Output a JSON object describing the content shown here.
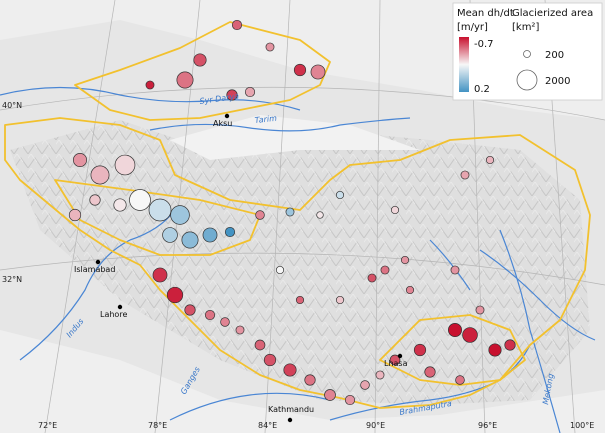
{
  "legend": {
    "color_title": "Mean dh/dt",
    "color_unit": "[m/yr]",
    "color_max": "-0.7",
    "color_min": "0.2",
    "size_title": "Glacierized area",
    "size_unit": "[km²]",
    "size_small": "200",
    "size_large": "2000"
  },
  "colors": {
    "boundary": "#f2c12e",
    "river": "#4a86d4",
    "strong_loss": "#c8102e",
    "neutral": "#f7f7f7",
    "gain": "#4393c3",
    "terrain": "#d9d9d9"
  },
  "cities": [
    {
      "name": "Aksu",
      "key": "aksu"
    },
    {
      "name": "Islamabad",
      "key": "islamabad"
    },
    {
      "name": "Lahore",
      "key": "lahore"
    },
    {
      "name": "Kathmandu",
      "key": "kathmandu"
    },
    {
      "name": "Lhasa",
      "key": "lhasa"
    }
  ],
  "rivers": [
    {
      "name": "Syr Darya",
      "key": "syrdarya"
    },
    {
      "name": "Tarim",
      "key": "tarim"
    },
    {
      "name": "Indus",
      "key": "indus"
    },
    {
      "name": "Ganges",
      "key": "ganges"
    },
    {
      "name": "Brahmaputra",
      "key": "brahmaputra"
    },
    {
      "name": "Mekong",
      "key": "mekong"
    }
  ],
  "lat_labels": [
    "40°N",
    "32°N"
  ],
  "lon_labels": [
    "72°E",
    "78°E",
    "84°E",
    "90°E",
    "96°E",
    "100°E"
  ],
  "regions": [
    {
      "dhdt": -0.45,
      "area": 400
    },
    {
      "dhdt": -0.3,
      "area": 300
    },
    {
      "dhdt": -0.6,
      "area": 600
    },
    {
      "dhdt": -0.35,
      "area": 900
    },
    {
      "dhdt": -0.5,
      "area": 700
    },
    {
      "dhdt": -0.4,
      "area": 1200
    },
    {
      "dhdt": -0.55,
      "area": 500
    },
    {
      "dhdt": -0.25,
      "area": 400
    },
    {
      "dhdt": -0.65,
      "area": 300
    },
    {
      "dhdt": -0.3,
      "area": 800
    },
    {
      "dhdt": -0.2,
      "area": 1500
    },
    {
      "dhdt": -0.1,
      "area": 1800
    },
    {
      "dhdt": 0.0,
      "area": 2000
    },
    {
      "dhdt": 0.05,
      "area": 2200
    },
    {
      "dhdt": 0.1,
      "area": 1600
    },
    {
      "dhdt": 0.12,
      "area": 1200
    },
    {
      "dhdt": 0.15,
      "area": 900
    },
    {
      "dhdt": 0.2,
      "area": 400
    },
    {
      "dhdt": 0.08,
      "area": 1000
    },
    {
      "dhdt": -0.05,
      "area": 700
    },
    {
      "dhdt": -0.15,
      "area": 500
    },
    {
      "dhdt": -0.2,
      "area": 600
    },
    {
      "dhdt": -0.6,
      "area": 900
    },
    {
      "dhdt": -0.65,
      "area": 1100
    },
    {
      "dhdt": -0.5,
      "area": 500
    },
    {
      "dhdt": -0.4,
      "area": 400
    },
    {
      "dhdt": -0.35,
      "area": 350
    },
    {
      "dhdt": -0.3,
      "area": 300
    },
    {
      "dhdt": -0.45,
      "area": 450
    },
    {
      "dhdt": -0.5,
      "area": 600
    },
    {
      "dhdt": -0.55,
      "area": 700
    },
    {
      "dhdt": -0.4,
      "area": 500
    },
    {
      "dhdt": -0.35,
      "area": 550
    },
    {
      "dhdt": -0.3,
      "area": 400
    },
    {
      "dhdt": -0.25,
      "area": 350
    },
    {
      "dhdt": -0.2,
      "area": 300
    },
    {
      "dhdt": -0.5,
      "area": 450
    },
    {
      "dhdt": -0.6,
      "area": 600
    },
    {
      "dhdt": -0.45,
      "area": 500
    },
    {
      "dhdt": -0.7,
      "area": 800
    },
    {
      "dhdt": -0.65,
      "area": 1000
    },
    {
      "dhdt": -0.7,
      "area": 700
    },
    {
      "dhdt": -0.6,
      "area": 500
    },
    {
      "dhdt": -0.4,
      "area": 350
    },
    {
      "dhdt": -0.3,
      "area": 300
    },
    {
      "dhdt": -0.2,
      "area": 250
    },
    {
      "dhdt": -0.25,
      "area": 300
    },
    {
      "dhdt": -0.35,
      "area": 350
    },
    {
      "dhdt": 0.1,
      "area": 300
    },
    {
      "dhdt": 0.05,
      "area": 250
    },
    {
      "dhdt": -0.05,
      "area": 200
    },
    {
      "dhdt": -0.1,
      "area": 250
    },
    {
      "dhdt": -0.3,
      "area": 250
    },
    {
      "dhdt": -0.4,
      "area": 300
    },
    {
      "dhdt": -0.5,
      "area": 300
    },
    {
      "dhdt": -0.45,
      "area": 250
    },
    {
      "dhdt": 0.0,
      "area": 250
    },
    {
      "dhdt": -0.15,
      "area": 250
    },
    {
      "dhdt": -0.3,
      "area": 300
    },
    {
      "dhdt": -0.35,
      "area": 250
    }
  ]
}
